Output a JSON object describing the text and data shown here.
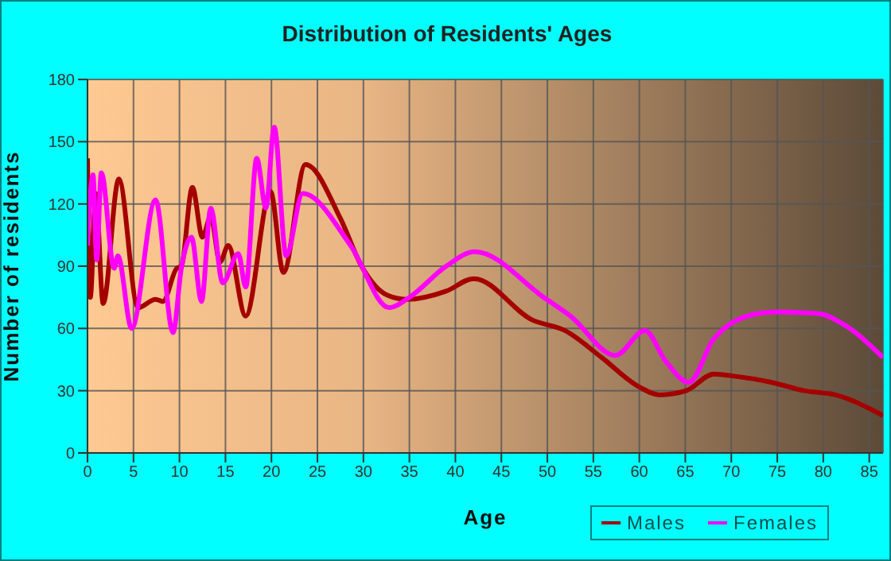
{
  "chart_data": {
    "type": "line",
    "title": "Distribution of Residents' Ages",
    "xlabel": "Age",
    "ylabel": "Number of residents",
    "xlim": [
      0,
      86.5
    ],
    "xticks": [
      0,
      5,
      10,
      15,
      20,
      25,
      30,
      35,
      40,
      45,
      50,
      55,
      60,
      65,
      70,
      75,
      80,
      85
    ],
    "ylim": [
      0,
      180
    ],
    "yticks": [
      0,
      30,
      60,
      90,
      120,
      150,
      180
    ],
    "grid": true,
    "legend": "bottom right",
    "line_style": "solid",
    "marker": "none",
    "series": [
      {
        "name": "Males",
        "color": "#a50000",
        "x": [
          0,
          0.3,
          0.9,
          1.7,
          3.4,
          5.5,
          7.4,
          8.2,
          9.7,
          10.2,
          11.4,
          12.5,
          13.4,
          14.4,
          15.3,
          17.2,
          19.9,
          21.3,
          23.7,
          27.5,
          29.8,
          32.6,
          34.7,
          39,
          42,
          48.4,
          51.9,
          55.9,
          59.9,
          62.2,
          65.1,
          68.1,
          70.3,
          74.4,
          77.9,
          81.3,
          86.5
        ],
        "values": [
          142,
          75,
          125,
          72,
          132,
          70,
          74,
          73,
          89,
          90,
          128,
          104,
          114,
          92,
          100,
          66,
          126,
          87,
          139,
          113,
          90,
          76,
          74,
          78,
          84,
          64,
          59,
          46,
          32,
          28,
          30,
          38,
          37,
          34,
          30,
          28,
          18
        ]
      },
      {
        "name": "Females",
        "color": "#ff00ff",
        "x": [
          0,
          0.6,
          1.0,
          1.5,
          2.9,
          3.3,
          4.8,
          7.4,
          9.3,
          10.2,
          11.3,
          12.4,
          13.4,
          14.7,
          16.4,
          17.2,
          18.4,
          19.4,
          20.3,
          21.6,
          23.4,
          28.6,
          32.8,
          35,
          39,
          42.1,
          49.6,
          52.5,
          57.4,
          60.6,
          62.9,
          65.4,
          68.1,
          72.7,
          75,
          79.6,
          82.2,
          86.5
        ],
        "values": [
          100,
          134,
          93,
          135,
          89,
          95,
          60,
          122,
          58,
          89,
          104,
          73,
          118,
          82,
          96,
          80,
          142,
          118,
          157,
          95,
          125,
          100,
          70,
          75,
          90,
          97,
          75,
          66,
          47,
          59,
          44,
          34,
          55,
          67,
          68,
          67,
          62,
          46
        ]
      }
    ]
  }
}
